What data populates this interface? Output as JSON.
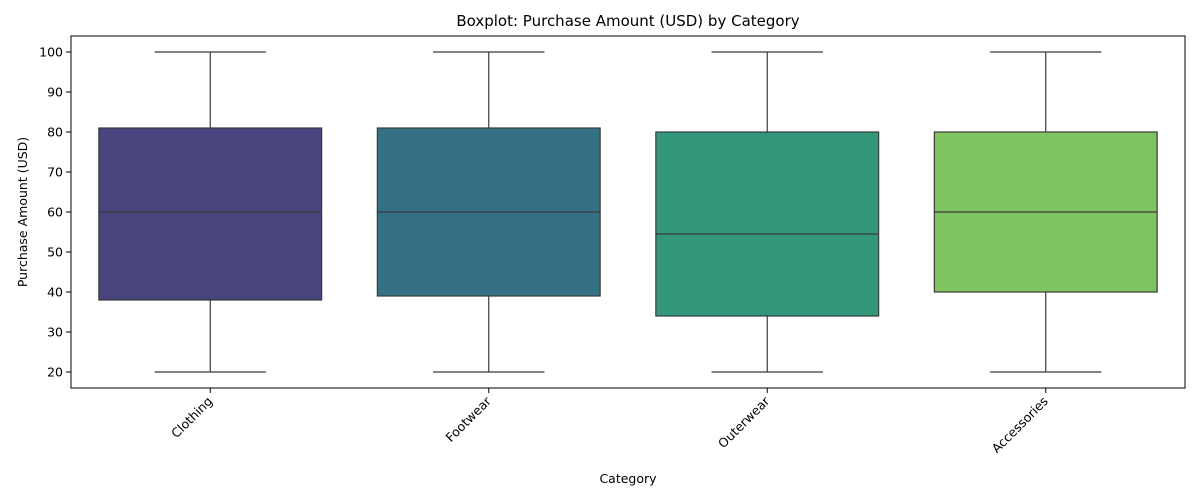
{
  "chart_data": {
    "type": "boxplot",
    "title": "Boxplot: Purchase Amount (USD) by Category",
    "xlabel": "Category",
    "ylabel": "Purchase Amount (USD)",
    "ylim": [
      16,
      104
    ],
    "yticks": [
      20,
      30,
      40,
      50,
      60,
      70,
      80,
      90,
      100
    ],
    "grid": false,
    "legend": "none",
    "categories": [
      "Clothing",
      "Footwear",
      "Outerwear",
      "Accessories"
    ],
    "boxes": [
      {
        "category": "Clothing",
        "min": 20,
        "q1": 38,
        "median": 60,
        "q3": 81,
        "max": 100,
        "color": "#48457e"
      },
      {
        "category": "Footwear",
        "min": 20,
        "q1": 39,
        "median": 60,
        "q3": 81,
        "max": 100,
        "color": "#357184"
      },
      {
        "category": "Outerwear",
        "min": 20,
        "q1": 34,
        "median": 54.5,
        "q3": 80,
        "max": 100,
        "color": "#33987b"
      },
      {
        "category": "Accessories",
        "min": 20,
        "q1": 40,
        "median": 60,
        "q3": 80,
        "max": 100,
        "color": "#80c361"
      }
    ]
  }
}
